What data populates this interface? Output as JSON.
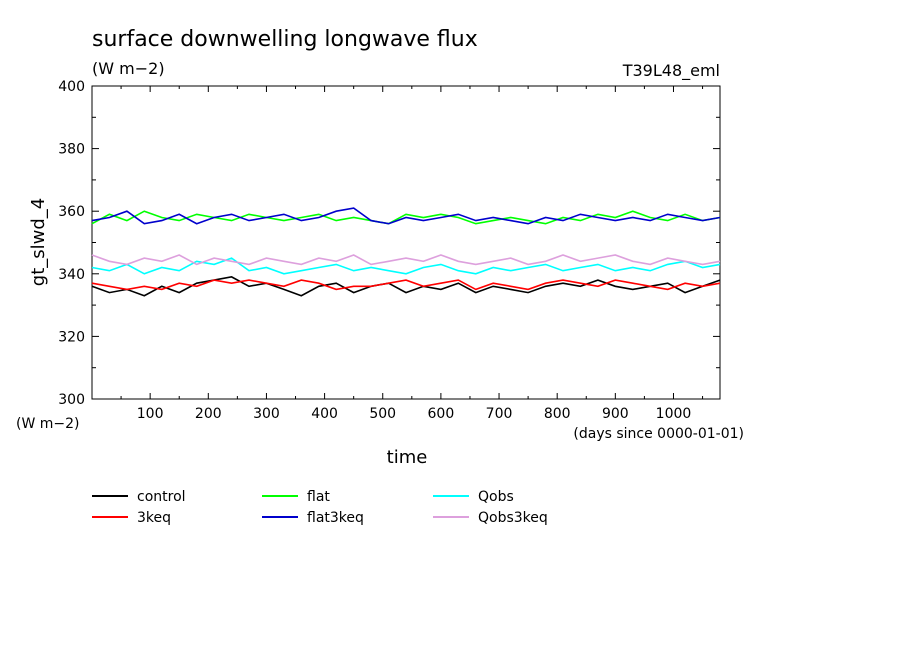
{
  "chart_data": {
    "type": "line",
    "title": "surface downwelling longwave flux",
    "units": "(W m−2)",
    "run_label": "T39L48_eml",
    "xlabel": "time",
    "xunits": "(days since 0000-01-01)",
    "ylabel": "gt_slwd_4",
    "yunits": "(W m−2)",
    "xlim": [
      0,
      1080
    ],
    "ylim": [
      300,
      400
    ],
    "x_ticks": [
      100,
      200,
      300,
      400,
      500,
      600,
      700,
      800,
      900,
      1000
    ],
    "y_ticks": [
      300,
      320,
      340,
      360,
      380,
      400
    ],
    "grid": false,
    "legend_position": "bottom",
    "series": [
      {
        "name": "control",
        "color": "#000000",
        "x": [
          0,
          30,
          60,
          90,
          120,
          150,
          180,
          210,
          240,
          270,
          300,
          330,
          360,
          390,
          420,
          450,
          480,
          510,
          540,
          570,
          600,
          630,
          660,
          690,
          720,
          750,
          780,
          810,
          840,
          870,
          900,
          930,
          960,
          990,
          1020,
          1050,
          1080
        ],
        "y": [
          336,
          334,
          335,
          333,
          336,
          334,
          337,
          338,
          339,
          336,
          337,
          335,
          333,
          336,
          337,
          334,
          336,
          337,
          334,
          336,
          335,
          337,
          334,
          336,
          335,
          334,
          336,
          337,
          336,
          338,
          336,
          335,
          336,
          337,
          334,
          336,
          338
        ]
      },
      {
        "name": "3keq",
        "color": "#ff0000",
        "x": [
          0,
          30,
          60,
          90,
          120,
          150,
          180,
          210,
          240,
          270,
          300,
          330,
          360,
          390,
          420,
          450,
          480,
          510,
          540,
          570,
          600,
          630,
          660,
          690,
          720,
          750,
          780,
          810,
          840,
          870,
          900,
          930,
          960,
          990,
          1020,
          1050,
          1080
        ],
        "y": [
          337,
          336,
          335,
          336,
          335,
          337,
          336,
          338,
          337,
          338,
          337,
          336,
          338,
          337,
          335,
          336,
          336,
          337,
          338,
          336,
          337,
          338,
          335,
          337,
          336,
          335,
          337,
          338,
          337,
          336,
          338,
          337,
          336,
          335,
          337,
          336,
          337
        ]
      },
      {
        "name": "flat",
        "color": "#00ff00",
        "x": [
          0,
          30,
          60,
          90,
          120,
          150,
          180,
          210,
          240,
          270,
          300,
          330,
          360,
          390,
          420,
          450,
          480,
          510,
          540,
          570,
          600,
          630,
          660,
          690,
          720,
          750,
          780,
          810,
          840,
          870,
          900,
          930,
          960,
          990,
          1020,
          1050,
          1080
        ],
        "y": [
          356,
          359,
          357,
          360,
          358,
          357,
          359,
          358,
          357,
          359,
          358,
          357,
          358,
          359,
          357,
          358,
          357,
          356,
          359,
          358,
          359,
          358,
          356,
          357,
          358,
          357,
          356,
          358,
          357,
          359,
          358,
          360,
          358,
          357,
          359,
          357,
          358
        ]
      },
      {
        "name": "flat3keq",
        "color": "#0000cc",
        "x": [
          0,
          30,
          60,
          90,
          120,
          150,
          180,
          210,
          240,
          270,
          300,
          330,
          360,
          390,
          420,
          450,
          480,
          510,
          540,
          570,
          600,
          630,
          660,
          690,
          720,
          750,
          780,
          810,
          840,
          870,
          900,
          930,
          960,
          990,
          1020,
          1050,
          1080
        ],
        "y": [
          357,
          358,
          360,
          356,
          357,
          359,
          356,
          358,
          359,
          357,
          358,
          359,
          357,
          358,
          360,
          361,
          357,
          356,
          358,
          357,
          358,
          359,
          357,
          358,
          357,
          356,
          358,
          357,
          359,
          358,
          357,
          358,
          357,
          359,
          358,
          357,
          358
        ]
      },
      {
        "name": "Qobs",
        "color": "#00ffff",
        "x": [
          0,
          30,
          60,
          90,
          120,
          150,
          180,
          210,
          240,
          270,
          300,
          330,
          360,
          390,
          420,
          450,
          480,
          510,
          540,
          570,
          600,
          630,
          660,
          690,
          720,
          750,
          780,
          810,
          840,
          870,
          900,
          930,
          960,
          990,
          1020,
          1050,
          1080
        ],
        "y": [
          342,
          341,
          343,
          340,
          342,
          341,
          344,
          343,
          345,
          341,
          342,
          340,
          341,
          342,
          343,
          341,
          342,
          341,
          340,
          342,
          343,
          341,
          340,
          342,
          341,
          342,
          343,
          341,
          342,
          343,
          341,
          342,
          341,
          343,
          344,
          342,
          343
        ]
      },
      {
        "name": "Qobs3keq",
        "color": "#dda0dd",
        "x": [
          0,
          30,
          60,
          90,
          120,
          150,
          180,
          210,
          240,
          270,
          300,
          330,
          360,
          390,
          420,
          450,
          480,
          510,
          540,
          570,
          600,
          630,
          660,
          690,
          720,
          750,
          780,
          810,
          840,
          870,
          900,
          930,
          960,
          990,
          1020,
          1050,
          1080
        ],
        "y": [
          346,
          344,
          343,
          345,
          344,
          346,
          343,
          345,
          344,
          343,
          345,
          344,
          343,
          345,
          344,
          346,
          343,
          344,
          345,
          344,
          346,
          344,
          343,
          344,
          345,
          343,
          344,
          346,
          344,
          345,
          346,
          344,
          343,
          345,
          344,
          343,
          344
        ]
      }
    ]
  }
}
